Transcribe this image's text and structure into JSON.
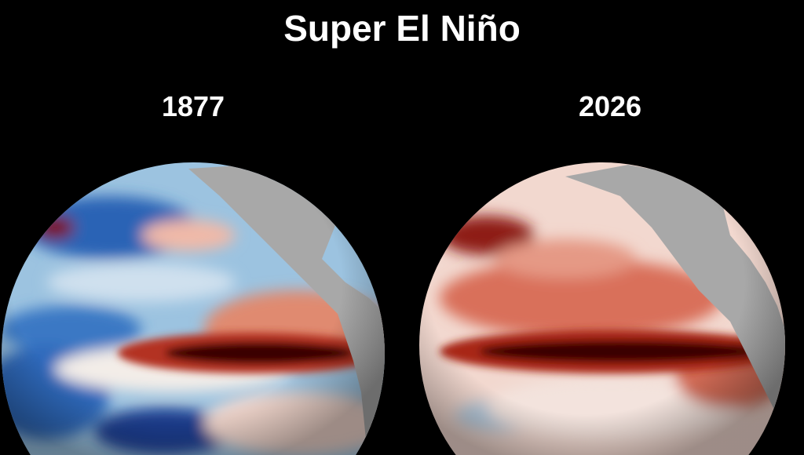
{
  "header": {
    "title": "Super El Niño"
  },
  "panels": [
    {
      "label": "1877"
    },
    {
      "label": "2026"
    }
  ]
}
